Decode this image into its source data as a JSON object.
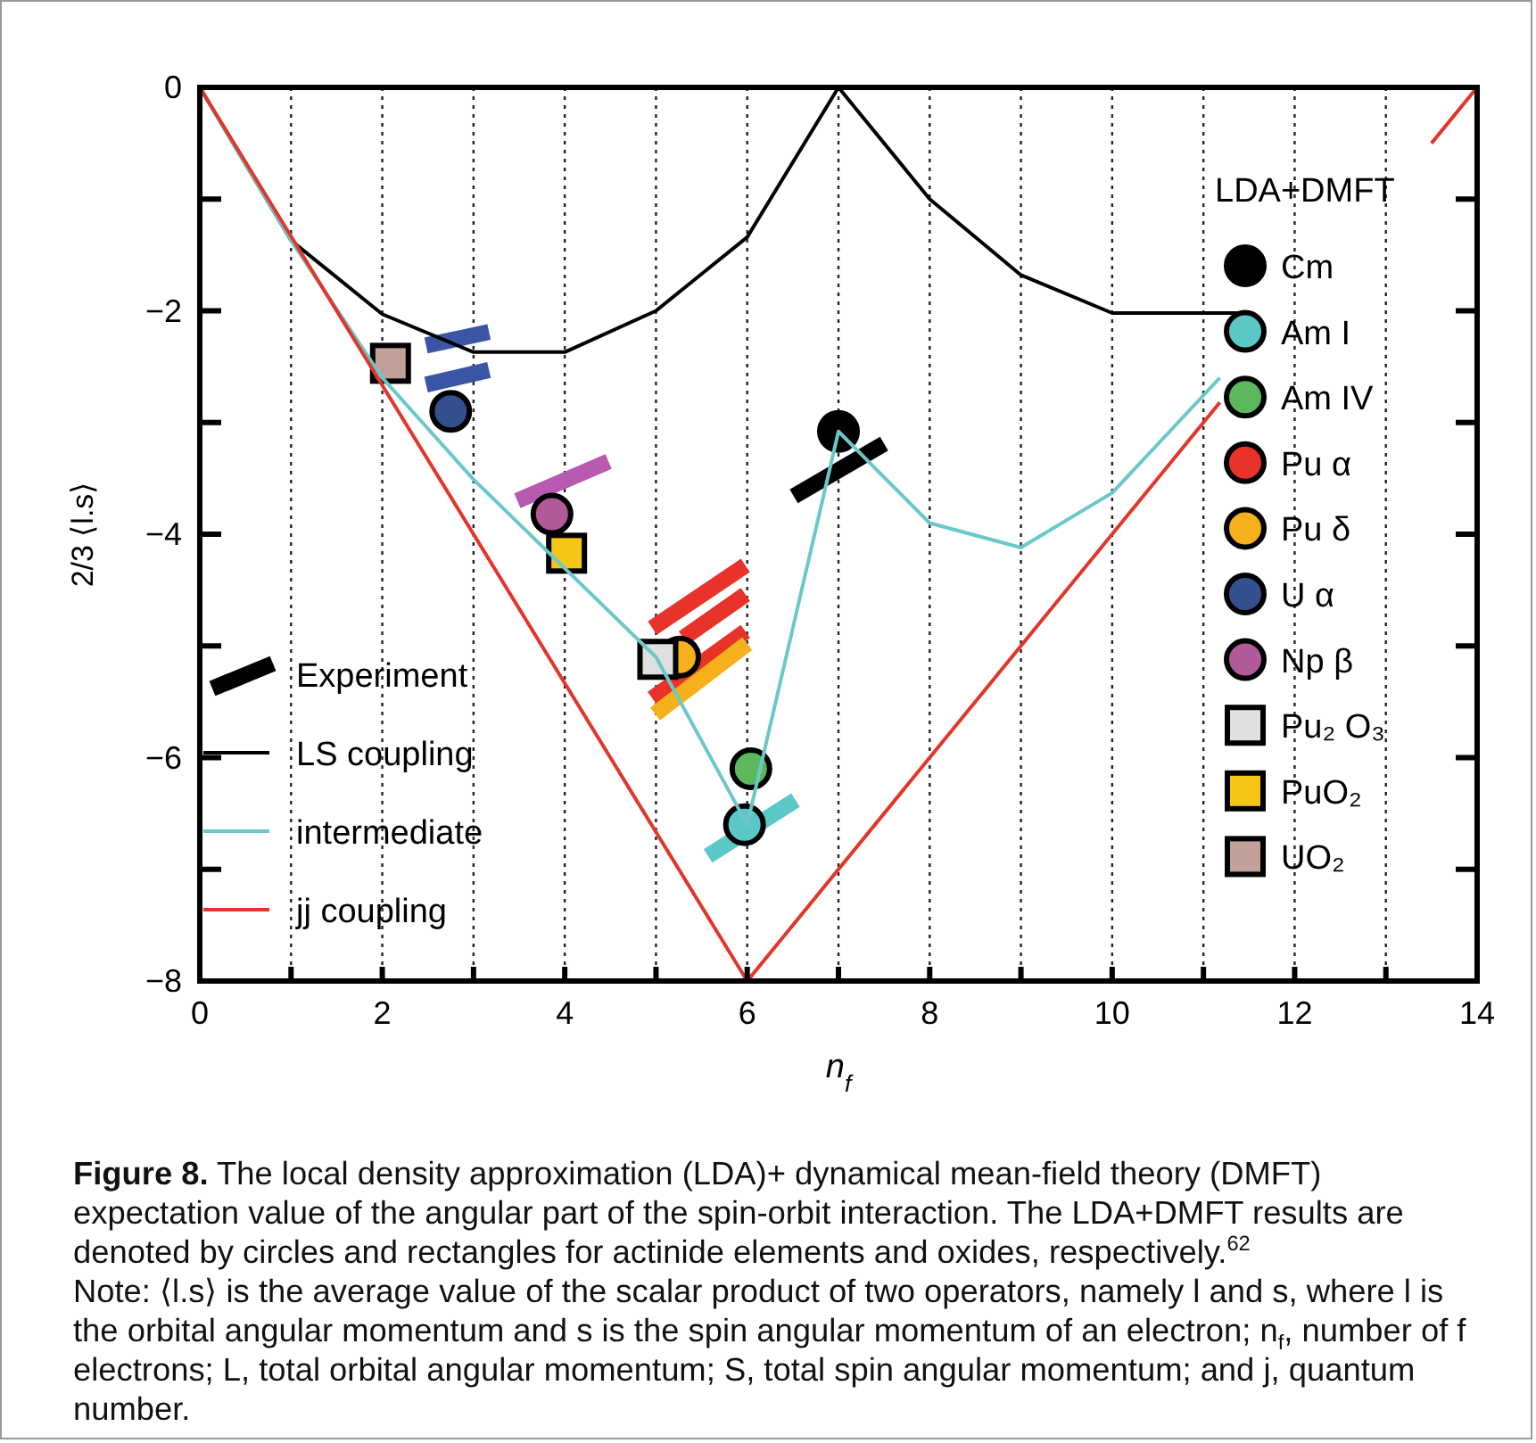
{
  "chart_data": {
    "type": "scatter",
    "xlabel": "n$_{f}$",
    "ylabel": "2/3 ⟨l.s⟩",
    "legend_title": "LDA+DMFT",
    "xlim": [
      0,
      14
    ],
    "ylim": [
      -8,
      0
    ],
    "xticks": [
      0,
      {
        "value": 1,
        "label": null
      },
      2,
      {
        "value": 3,
        "label": null
      },
      4,
      {
        "value": 5,
        "label": null
      },
      6,
      {
        "value": 7,
        "label": null
      },
      8,
      {
        "value": 9,
        "label": null
      },
      10,
      {
        "value": 11,
        "label": null
      },
      12,
      {
        "value": 13,
        "label": null
      },
      14
    ],
    "yticks": [
      -8,
      {
        "value": -7,
        "label": null
      },
      -6,
      {
        "value": -5,
        "label": null
      },
      -4,
      {
        "value": -3,
        "label": null
      },
      -2,
      {
        "value": -1,
        "label": null
      },
      0
    ],
    "grid": "x",
    "legend": "right",
    "series": [
      {
        "type": "line",
        "color": "#3a55a4",
        "x": [
          2.48,
          3.17
        ],
        "values": [
          -2.31,
          -2.19
        ]
      },
      {
        "type": "line",
        "color": "#3a55a4",
        "x": [
          2.48,
          3.17
        ],
        "values": [
          -2.66,
          -2.53
        ]
      },
      {
        "type": "line",
        "color": "#b85ab0",
        "x": [
          3.48,
          4.48
        ],
        "values": [
          -3.7,
          -3.35
        ]
      },
      {
        "type": "line",
        "color": "#e8322a",
        "x": [
          4.96,
          5.98
        ],
        "values": [
          -4.84,
          -4.28
        ]
      },
      {
        "type": "line",
        "color": "#e8322a",
        "x": [
          5.3,
          5.98
        ],
        "values": [
          -4.93,
          -4.54
        ]
      },
      {
        "type": "line",
        "color": "#e8322a",
        "x": [
          4.96,
          5.98
        ],
        "values": [
          -5.47,
          -4.87
        ]
      },
      {
        "type": "line",
        "color": "#f5b01c",
        "x": [
          4.99,
          6.0
        ],
        "values": [
          -5.61,
          -4.98
        ]
      },
      {
        "type": "line",
        "color": "#5bc8c8",
        "x": [
          5.57,
          6.53
        ],
        "values": [
          -6.88,
          -6.38
        ]
      },
      {
        "name": "Experiment",
        "type": "line",
        "color": "#000000",
        "x": [
          6.51,
          7.5
        ],
        "values": [
          -3.66,
          -3.19
        ]
      },
      {
        "name": "LS coupling",
        "type": "line",
        "color": "#000000",
        "line_style": "solid",
        "x": [
          0,
          1,
          2,
          3,
          4,
          5,
          6,
          7,
          8,
          9,
          10,
          11,
          11.4
        ],
        "values": [
          0,
          -1.37,
          -2.03,
          -2.37,
          -2.37,
          -2.0,
          -1.34,
          0,
          -1.0,
          -1.68,
          -2.02,
          -2.02,
          -2.02
        ]
      },
      {
        "name": "intermediate",
        "type": "line",
        "color": "#6cc8c8",
        "line_style": "solid",
        "x": [
          0,
          1,
          2,
          3,
          5,
          6,
          7,
          8,
          9,
          10,
          11.18
        ],
        "values": [
          0,
          -1.37,
          -2.6,
          -3.51,
          -5.1,
          -6.6,
          -3.08,
          -3.9,
          -4.12,
          -3.63,
          -2.6
        ]
      },
      {
        "name": "jj coupling",
        "type": "line",
        "color": "#e0362c",
        "line_style": "solid",
        "x": [
          0,
          6,
          11.18,
          12,
          13.5,
          14
        ],
        "values": [
          0,
          -8,
          -2.82,
          null,
          -0.5,
          0
        ]
      },
      {
        "name": "Cm",
        "color": "#000000",
        "marker": "circle",
        "x": [
          7.0
        ],
        "values": [
          -3.08
        ]
      },
      {
        "name": "Am I",
        "color": "#5bc8c8",
        "marker": "circle",
        "x": [
          5.97
        ],
        "values": [
          -6.6
        ]
      },
      {
        "name": "Am IV",
        "color": "#5cb85c",
        "marker": "circle",
        "x": [
          6.04
        ],
        "values": [
          -6.1
        ]
      },
      {
        "name": "Pu α",
        "color": "#e8322a",
        "marker": "circle"
      },
      {
        "name": "Pu δ",
        "color": "#f5b01c",
        "marker": "circle",
        "x": [
          5.26
        ],
        "values": [
          -5.1
        ]
      },
      {
        "name": "U α",
        "color": "#34508f",
        "marker": "circle",
        "x": [
          2.75
        ],
        "values": [
          -2.9
        ]
      },
      {
        "name": "Np β",
        "color": "#b05a9a",
        "marker": "circle",
        "x": [
          3.86
        ],
        "values": [
          -3.82
        ]
      },
      {
        "name": "Pu₂ O₃",
        "color": "#e0e0e0",
        "marker": "square",
        "x": [
          5.02
        ],
        "values": [
          -5.12
        ]
      },
      {
        "name": "PuO₂",
        "color": "#f5c518",
        "marker": "square",
        "x": [
          4.02
        ],
        "values": [
          -4.17
        ]
      },
      {
        "name": "UO₂",
        "color": "#c4a09a",
        "marker": "square",
        "x": [
          2.09
        ],
        "values": [
          -2.47
        ]
      }
    ],
    "annotations": [
      "Figure 8. The local density approximation (LDA)+ dynamical mean-field theory (DMFT) expectation value of the angular part of the spin-orbit interaction. The LDA+DMFT results are denoted by circles and rectangles for actinide elements and oxides, respectively.$^{62}$",
      "Note: ⟨l.s⟩ is the average value of the scalar product of two operators, namely l and s, where l is the orbital angular momentum and s is the spin angular momentum of an electron; n$_{f}$, number of f electrons; L, total orbital angular momentum; S, total spin angular momentum; and j, quantum number."
    ]
  }
}
